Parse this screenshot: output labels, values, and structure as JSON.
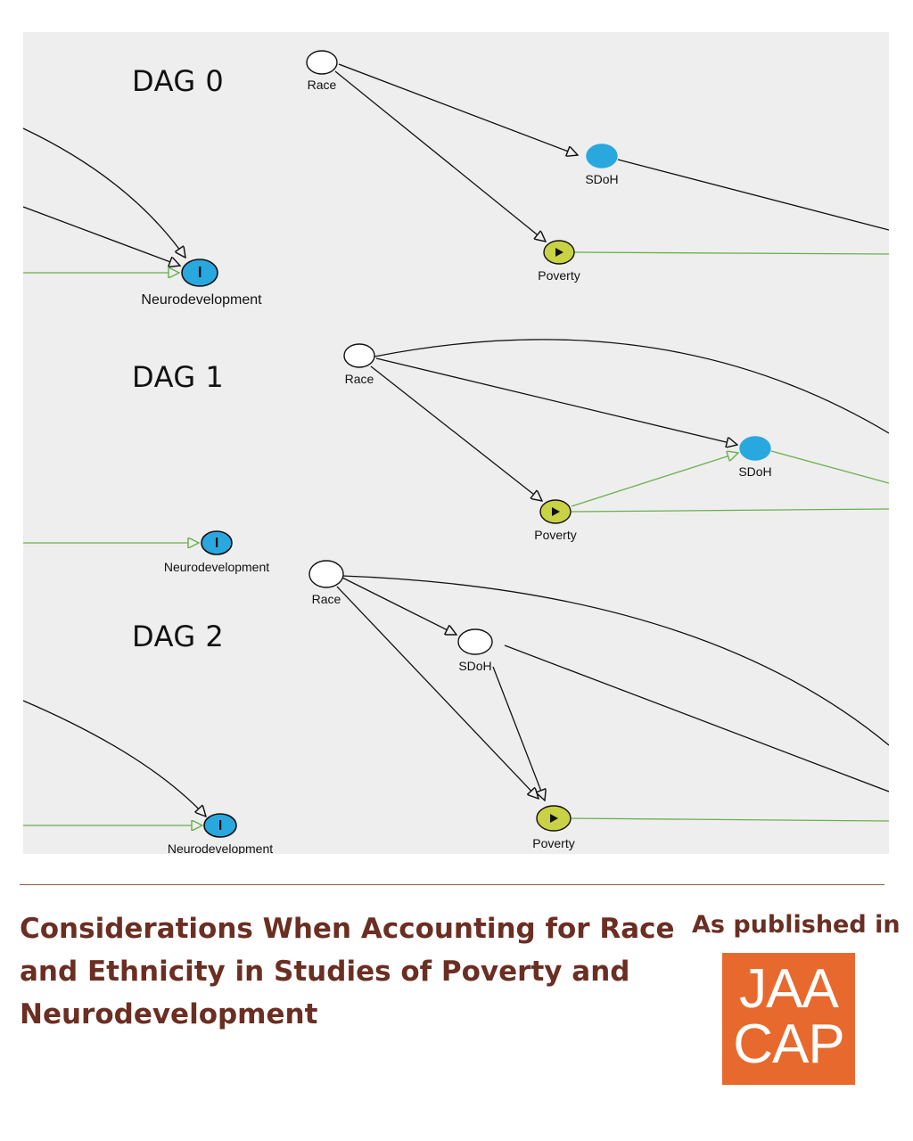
{
  "figure": {
    "dags": [
      {
        "title": "DAG 0",
        "labels": {
          "race": "Race",
          "sdoh": "SDoH",
          "poverty": "Poverty",
          "neuro": "Neurodevelopment"
        }
      },
      {
        "title": "DAG 1",
        "labels": {
          "race": "Race",
          "sdoh": "SDoH",
          "poverty": "Poverty",
          "neuro": "Neurodevelopment"
        }
      },
      {
        "title": "DAG 2",
        "labels": {
          "race": "Race",
          "sdoh": "SDoH",
          "poverty": "Poverty",
          "neuro": "Neurodevelopment"
        }
      }
    ],
    "colors": {
      "background": "#eeeeee",
      "exposure_node": "#c8d244",
      "outcome_node": "#29a8df",
      "causal_path": "#6ab04c",
      "biasing_path": "#111111"
    },
    "node_types": {
      "exposure": "play-triangle-icon",
      "outcome": "outcome-bar-icon"
    }
  },
  "caption": {
    "title": "Considerations When Accounting for Race and Ethnicity in Studies of Poverty and Neurodevelopment",
    "published_label": "As published in",
    "journal_logo": {
      "line1": "JAA",
      "line2": "CAP"
    }
  }
}
